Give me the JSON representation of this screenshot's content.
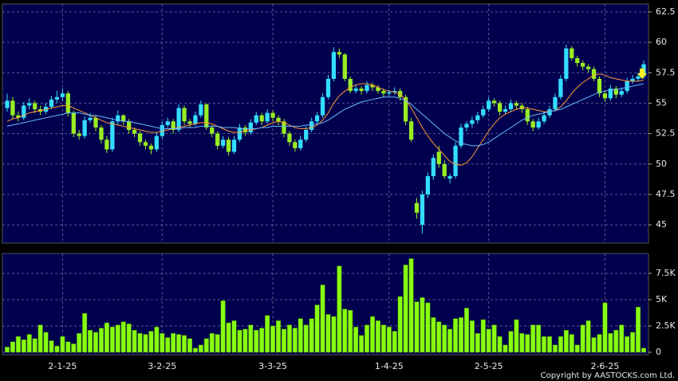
{
  "chart_data": [
    {
      "type": "candlestick",
      "background": "#00004f",
      "up_color": "#33ddff",
      "down_color": "#99ee22",
      "grid": true,
      "ylim": [
        43.5,
        63.15
      ],
      "yticks": [
        45,
        47.5,
        50,
        52.5,
        55,
        57.5,
        60,
        62.5
      ],
      "ohlc": [
        [
          54.6,
          55.8,
          54.3,
          55.2
        ],
        [
          55.2,
          55.5,
          53.7,
          54.0
        ],
        [
          54.0,
          54.3,
          53.5,
          53.8
        ],
        [
          53.8,
          55.1,
          53.6,
          54.8
        ],
        [
          54.8,
          55.4,
          54.5,
          55.0
        ],
        [
          55.0,
          55.2,
          54.2,
          54.5
        ],
        [
          54.5,
          54.8,
          54.0,
          54.3
        ],
        [
          54.3,
          55.0,
          54.1,
          54.7
        ],
        [
          54.7,
          55.6,
          54.5,
          55.3
        ],
        [
          55.3,
          56.0,
          55.0,
          55.5
        ],
        [
          55.5,
          56.2,
          55.2,
          55.8
        ],
        [
          55.8,
          56.0,
          53.9,
          54.2
        ],
        [
          54.2,
          54.4,
          52.2,
          52.5
        ],
        [
          52.5,
          52.8,
          52.0,
          52.3
        ],
        [
          52.3,
          53.9,
          52.1,
          53.6
        ],
        [
          53.6,
          54.2,
          53.4,
          53.8
        ],
        [
          53.8,
          54.0,
          52.7,
          53.0
        ],
        [
          53.0,
          53.2,
          51.7,
          52.0
        ],
        [
          52.0,
          52.3,
          50.9,
          51.2
        ],
        [
          51.2,
          53.8,
          51.0,
          53.5
        ],
        [
          53.5,
          54.4,
          53.2,
          54.0
        ],
        [
          54.0,
          54.1,
          53.2,
          53.5
        ],
        [
          53.5,
          53.7,
          52.5,
          52.8
        ],
        [
          52.8,
          53.0,
          52.2,
          52.5
        ],
        [
          52.5,
          52.7,
          51.5,
          51.8
        ],
        [
          51.8,
          52.0,
          51.2,
          51.5
        ],
        [
          51.5,
          51.7,
          50.8,
          51.2
        ],
        [
          51.2,
          52.6,
          51.0,
          52.3
        ],
        [
          52.3,
          53.5,
          52.1,
          53.2
        ],
        [
          53.2,
          53.8,
          53.0,
          53.5
        ],
        [
          53.5,
          53.7,
          52.5,
          52.8
        ],
        [
          52.8,
          54.9,
          52.6,
          54.6
        ],
        [
          54.6,
          54.8,
          53.2,
          53.5
        ],
        [
          53.5,
          53.7,
          53.0,
          53.3
        ],
        [
          53.3,
          54.3,
          53.1,
          54.0
        ],
        [
          54.0,
          55.2,
          53.8,
          54.9
        ],
        [
          54.9,
          55.0,
          52.8,
          53.0
        ],
        [
          53.0,
          53.2,
          52.2,
          52.5
        ],
        [
          52.5,
          52.7,
          51.2,
          51.5
        ],
        [
          51.5,
          52.3,
          51.3,
          52.0
        ],
        [
          52.0,
          52.2,
          50.7,
          51.0
        ],
        [
          51.0,
          52.3,
          50.8,
          52.0
        ],
        [
          52.0,
          53.3,
          51.8,
          53.0
        ],
        [
          53.0,
          53.2,
          52.3,
          52.6
        ],
        [
          52.6,
          53.7,
          52.4,
          53.4
        ],
        [
          53.4,
          54.3,
          53.2,
          54.0
        ],
        [
          54.0,
          54.2,
          53.2,
          53.5
        ],
        [
          53.5,
          54.5,
          53.3,
          54.2
        ],
        [
          54.2,
          54.4,
          53.5,
          53.8
        ],
        [
          53.8,
          54.0,
          53.2,
          53.5
        ],
        [
          53.5,
          53.7,
          52.2,
          52.5
        ],
        [
          52.5,
          52.7,
          51.5,
          51.8
        ],
        [
          51.8,
          52.0,
          51.0,
          51.3
        ],
        [
          51.3,
          52.3,
          51.1,
          52.0
        ],
        [
          52.0,
          53.1,
          51.8,
          52.8
        ],
        [
          52.8,
          53.8,
          52.6,
          53.5
        ],
        [
          53.5,
          54.3,
          53.3,
          54.0
        ],
        [
          54.0,
          55.8,
          53.8,
          55.5
        ],
        [
          55.5,
          57.3,
          55.3,
          57.0
        ],
        [
          57.0,
          59.6,
          56.8,
          59.2
        ],
        [
          59.2,
          59.5,
          58.7,
          59.0
        ],
        [
          59.0,
          59.1,
          56.8,
          57.0
        ],
        [
          57.0,
          57.2,
          55.8,
          56.0
        ],
        [
          56.0,
          56.5,
          55.8,
          56.2
        ],
        [
          56.2,
          56.4,
          55.7,
          56.0
        ],
        [
          56.0,
          56.8,
          55.8,
          56.5
        ],
        [
          56.5,
          56.7,
          56.0,
          56.3
        ],
        [
          56.3,
          56.5,
          55.8,
          56.0
        ],
        [
          56.0,
          56.2,
          55.5,
          55.8
        ],
        [
          55.8,
          56.1,
          55.6,
          55.9
        ],
        [
          55.9,
          56.3,
          55.7,
          56.0
        ],
        [
          56.0,
          56.2,
          55.2,
          55.5
        ],
        [
          55.5,
          55.7,
          53.2,
          53.5
        ],
        [
          53.5,
          53.8,
          51.8,
          52.0
        ],
        [
          46.8,
          47.2,
          45.5,
          46.0
        ],
        [
          45.0,
          47.8,
          44.3,
          47.5
        ],
        [
          47.5,
          49.3,
          47.2,
          49.0
        ],
        [
          49.0,
          50.8,
          48.7,
          50.5
        ],
        [
          51.0,
          51.5,
          49.7,
          50.0
        ],
        [
          50.0,
          50.3,
          48.8,
          49.0
        ],
        [
          48.8,
          49.2,
          48.4,
          49.0
        ],
        [
          49.0,
          51.8,
          48.8,
          51.5
        ],
        [
          51.5,
          53.3,
          51.3,
          53.0
        ],
        [
          53.0,
          53.5,
          52.7,
          53.3
        ],
        [
          53.3,
          53.9,
          53.0,
          53.6
        ],
        [
          53.6,
          54.3,
          53.3,
          54.0
        ],
        [
          54.0,
          54.8,
          53.8,
          54.5
        ],
        [
          54.5,
          55.5,
          54.3,
          55.2
        ],
        [
          55.2,
          55.4,
          54.7,
          55.0
        ],
        [
          55.0,
          55.2,
          54.0,
          54.3
        ],
        [
          54.3,
          54.8,
          54.1,
          54.5
        ],
        [
          54.5,
          55.3,
          54.3,
          55.0
        ],
        [
          55.0,
          55.2,
          54.5,
          54.8
        ],
        [
          54.8,
          55.0,
          54.2,
          54.5
        ],
        [
          54.5,
          54.7,
          53.2,
          53.5
        ],
        [
          53.5,
          53.7,
          52.7,
          53.0
        ],
        [
          53.0,
          53.8,
          52.8,
          53.5
        ],
        [
          53.5,
          54.3,
          53.3,
          54.0
        ],
        [
          54.0,
          54.8,
          53.8,
          54.5
        ],
        [
          54.5,
          55.8,
          54.3,
          55.5
        ],
        [
          55.5,
          57.3,
          55.3,
          57.0
        ],
        [
          57.0,
          59.8,
          56.8,
          59.5
        ],
        [
          59.5,
          59.7,
          58.5,
          58.7
        ],
        [
          58.7,
          58.9,
          58.0,
          58.3
        ],
        [
          58.3,
          58.5,
          57.7,
          58.0
        ],
        [
          58.0,
          58.2,
          57.5,
          57.8
        ],
        [
          57.8,
          58.0,
          56.8,
          57.0
        ],
        [
          57.0,
          57.2,
          55.5,
          55.8
        ],
        [
          55.8,
          56.0,
          55.1,
          55.4
        ],
        [
          55.4,
          56.5,
          55.2,
          56.2
        ],
        [
          56.2,
          56.4,
          55.4,
          55.7
        ],
        [
          55.7,
          56.3,
          55.5,
          56.0
        ],
        [
          56.0,
          57.1,
          55.8,
          56.8
        ],
        [
          56.8,
          57.3,
          56.6,
          57.0
        ],
        [
          57.0,
          57.5,
          56.8,
          57.2
        ],
        [
          57.2,
          58.5,
          57.0,
          58.2
        ]
      ],
      "lines": [
        {
          "color": "#ff9933",
          "values": [
            53.5,
            53.7,
            53.8,
            54.0,
            54.2,
            54.3,
            54.4,
            54.5,
            54.6,
            54.7,
            54.8,
            54.8,
            54.6,
            54.4,
            54.2,
            54.0,
            53.8,
            53.6,
            53.4,
            53.3,
            53.2,
            53.1,
            53.0,
            52.9,
            52.8,
            52.7,
            52.6,
            52.6,
            52.7,
            52.8,
            52.9,
            53.0,
            53.1,
            53.2,
            53.3,
            53.4,
            53.4,
            53.3,
            53.1,
            52.9,
            52.7,
            52.6,
            52.6,
            52.7,
            52.8,
            52.9,
            53.0,
            53.2,
            53.4,
            53.5,
            53.4,
            53.2,
            53.0,
            52.9,
            52.9,
            53.0,
            53.2,
            53.6,
            54.2,
            55.0,
            55.6,
            56.0,
            56.3,
            56.5,
            56.6,
            56.6,
            56.5,
            56.3,
            56.1,
            56.0,
            55.9,
            55.7,
            55.3,
            54.6,
            53.8,
            53.0,
            52.3,
            51.7,
            51.2,
            50.7,
            50.2,
            50.0,
            49.9,
            50.1,
            50.6,
            51.3,
            52.0,
            52.7,
            53.3,
            53.8,
            54.1,
            54.3,
            54.5,
            54.6,
            54.6,
            54.5,
            54.4,
            54.3,
            54.3,
            54.4,
            54.7,
            55.2,
            55.8,
            56.3,
            56.7,
            57.0,
            57.3,
            57.4,
            57.3,
            57.1,
            57.0,
            56.9,
            56.8,
            56.8,
            56.8,
            56.9
          ]
        },
        {
          "color": "#66bbff",
          "values": [
            53.1,
            53.2,
            53.3,
            53.4,
            53.5,
            53.6,
            53.7,
            53.8,
            53.9,
            54.0,
            54.1,
            54.2,
            54.2,
            54.2,
            54.1,
            54.0,
            54.0,
            53.9,
            53.8,
            53.7,
            53.6,
            53.5,
            53.5,
            53.4,
            53.3,
            53.2,
            53.1,
            53.0,
            52.9,
            52.9,
            52.9,
            52.9,
            53.0,
            53.0,
            53.0,
            53.1,
            53.1,
            53.1,
            53.1,
            53.0,
            53.0,
            53.0,
            52.9,
            52.9,
            52.9,
            52.9,
            53.0,
            53.0,
            53.1,
            53.1,
            53.1,
            53.1,
            53.1,
            53.1,
            53.2,
            53.2,
            53.3,
            53.4,
            53.6,
            53.9,
            54.2,
            54.5,
            54.7,
            54.9,
            55.1,
            55.2,
            55.3,
            55.4,
            55.5,
            55.5,
            55.5,
            55.4,
            55.2,
            54.9,
            54.5,
            54.1,
            53.7,
            53.3,
            52.9,
            52.5,
            52.2,
            51.9,
            51.7,
            51.6,
            51.5,
            51.5,
            51.6,
            51.8,
            52.1,
            52.4,
            52.7,
            53.0,
            53.3,
            53.6,
            53.8,
            54.0,
            54.1,
            54.2,
            54.3,
            54.4,
            54.5,
            54.7,
            54.9,
            55.1,
            55.3,
            55.5,
            55.7,
            55.9,
            56.0,
            56.1,
            56.1,
            56.2,
            56.3,
            56.4,
            56.5,
            56.6
          ]
        }
      ]
    },
    {
      "type": "bar",
      "background": "#00004f",
      "color": "#88ff11",
      "grid": true,
      "ylim": [
        -230,
        9390
      ],
      "yticks": [
        0,
        {
          "value": 2500,
          "label": "2.5K"
        },
        {
          "value": 5000,
          "label": "5K"
        },
        {
          "value": 7500,
          "label": "7.5K"
        }
      ],
      "categories": [
        null,
        null,
        null,
        null,
        null,
        null,
        null,
        null,
        null,
        null,
        "2-1-25",
        null,
        null,
        null,
        null,
        null,
        null,
        null,
        null,
        null,
        null,
        null,
        null,
        null,
        null,
        null,
        null,
        null,
        "3-2-25",
        null,
        null,
        null,
        null,
        null,
        null,
        null,
        null,
        null,
        null,
        null,
        null,
        null,
        null,
        null,
        null,
        null,
        null,
        null,
        "3-3-25",
        null,
        null,
        null,
        null,
        null,
        null,
        null,
        null,
        null,
        null,
        null,
        null,
        null,
        null,
        null,
        null,
        null,
        null,
        null,
        null,
        "1-4-25",
        null,
        null,
        null,
        null,
        null,
        null,
        null,
        null,
        null,
        null,
        null,
        null,
        null,
        null,
        null,
        null,
        null,
        "2-5-25",
        null,
        null,
        null,
        null,
        null,
        null,
        null,
        null,
        null,
        null,
        null,
        null,
        null,
        null,
        null,
        null,
        null,
        null,
        null,
        null,
        "2-6-25",
        null,
        null,
        null,
        null,
        null,
        null,
        null
      ],
      "values": [
        500,
        1000,
        1500,
        1200,
        1700,
        1300,
        2600,
        1900,
        1100,
        600,
        1500,
        1000,
        800,
        1800,
        3700,
        2100,
        1900,
        2300,
        2800,
        2400,
        2600,
        2900,
        2700,
        2100,
        1800,
        1700,
        2000,
        2400,
        1800,
        1400,
        1800,
        1700,
        1600,
        1300,
        400,
        700,
        1300,
        1800,
        1700,
        4900,
        2800,
        3000,
        2100,
        2200,
        2600,
        2100,
        2300,
        3500,
        2500,
        3000,
        2200,
        2600,
        2300,
        3200,
        2600,
        3200,
        4500,
        6400,
        3600,
        3400,
        8200,
        4100,
        4000,
        2400,
        1600,
        2600,
        3400,
        3000,
        2600,
        2400,
        2000,
        5300,
        8300,
        8900,
        4800,
        5200,
        4700,
        3300,
        2900,
        2600,
        2200,
        3200,
        3300,
        4200,
        3000,
        1800,
        3100,
        2200,
        2600,
        1500,
        700,
        2000,
        3100,
        1800,
        1700,
        2600,
        2600,
        1500,
        1500,
        700,
        1500,
        2100,
        1700,
        700,
        2600,
        3000,
        1400,
        1700,
        4700,
        1800,
        2100,
        2600,
        1500,
        1900,
        4300,
        400
      ]
    }
  ],
  "copyright": "Copyright by AASTOCKS.com Ltd."
}
